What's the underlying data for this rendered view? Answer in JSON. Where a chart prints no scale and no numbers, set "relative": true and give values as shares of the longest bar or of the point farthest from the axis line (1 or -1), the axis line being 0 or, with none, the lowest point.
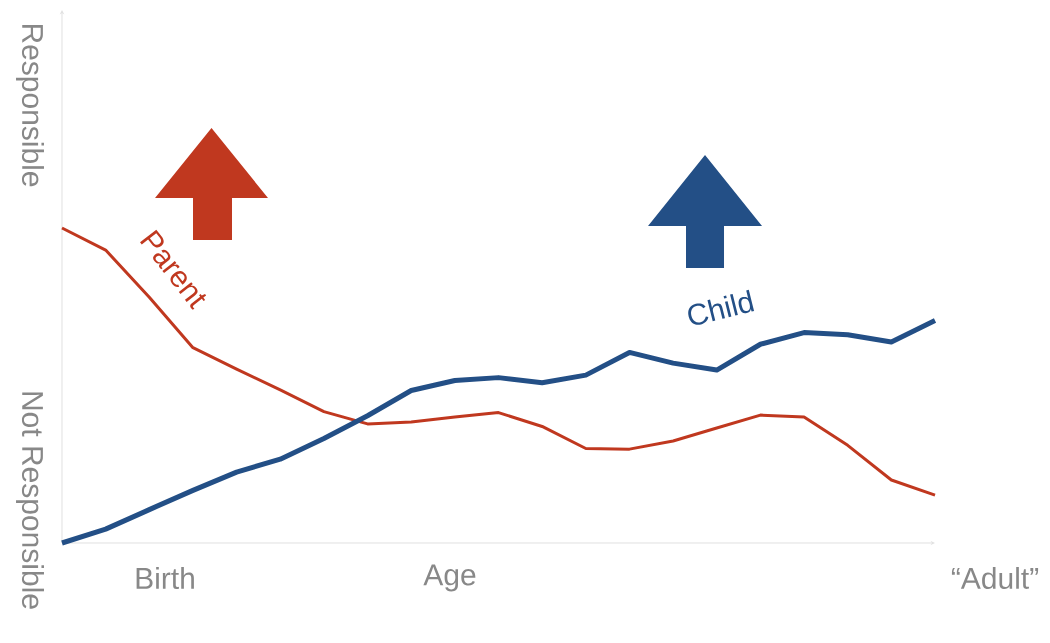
{
  "chart_data": {
    "type": "line",
    "relative": true,
    "xlabel": "Age",
    "categories": [
      null,
      null,
      null,
      null,
      null,
      null,
      null,
      null,
      null,
      null,
      null,
      null,
      null,
      null,
      null,
      null,
      null,
      null,
      null,
      null,
      null
    ],
    "annotations": [
      "Responsible",
      "Not Responsible",
      "Birth",
      "“Adult”"
    ],
    "series": [
      {
        "name": "Parent",
        "color": "#c0381f",
        "values": [
          1.0,
          0.93,
          0.78,
          0.62,
          0.552,
          0.486,
          0.417,
          0.378,
          0.384,
          0.4,
          0.414,
          0.37,
          0.3,
          0.298,
          0.324,
          0.365,
          0.406,
          0.4,
          0.31,
          0.2,
          0.152
        ]
      },
      {
        "name": "Child",
        "color": "#234f86",
        "values": [
          0,
          0.044,
          0.106,
          0.167,
          0.225,
          0.266,
          0.332,
          0.404,
          0.484,
          0.516,
          0.525,
          0.509,
          0.533,
          0.605,
          0.571,
          0.549,
          0.631,
          0.668,
          0.661,
          0.638,
          0.706
        ]
      }
    ]
  }
}
